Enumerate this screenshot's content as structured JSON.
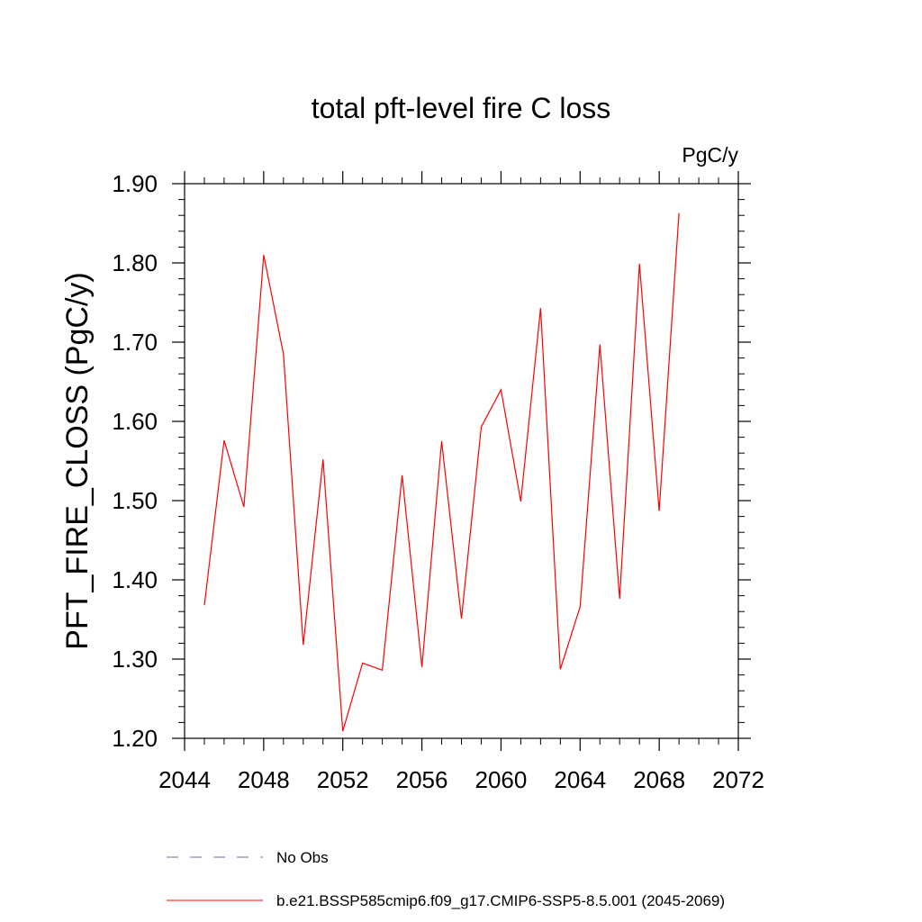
{
  "chart_data": {
    "type": "line",
    "title": "total pft-level fire C loss",
    "units_label": "PgC/y",
    "ylabel": "PFT_FIRE_CLOSS  (PgC/y)",
    "xlabel": "",
    "xlim": [
      2044,
      2072
    ],
    "ylim": [
      1.2,
      1.9
    ],
    "x_ticks": [
      2044,
      2048,
      2052,
      2056,
      2060,
      2064,
      2068,
      2072
    ],
    "y_ticks": [
      "1.20",
      "1.30",
      "1.40",
      "1.50",
      "1.60",
      "1.70",
      "1.80",
      "1.90"
    ],
    "grid": false,
    "legend_position": "bottom",
    "series": [
      {
        "name": "b.e21.BSSP585cmip6.f09_g17.CMIP6-SSP5-8.5.001 (2045-2069)",
        "color": "#ff0000",
        "dash": "solid",
        "x": [
          2045,
          2046,
          2047,
          2048,
          2049,
          2050,
          2051,
          2052,
          2053,
          2054,
          2055,
          2056,
          2057,
          2058,
          2059,
          2060,
          2061,
          2062,
          2063,
          2064,
          2065,
          2066,
          2067,
          2068,
          2069
        ],
        "y": [
          1.368,
          1.576,
          1.492,
          1.81,
          1.685,
          1.318,
          1.552,
          1.209,
          1.295,
          1.286,
          1.532,
          1.29,
          1.575,
          1.351,
          1.593,
          1.64,
          1.499,
          1.743,
          1.287,
          1.366,
          1.697,
          1.376,
          1.799,
          1.487,
          1.863
        ]
      }
    ],
    "legend": [
      {
        "label": "No Obs",
        "color": "#6a6aa8",
        "dash": "dashed"
      },
      {
        "label": "b.e21.BSSP585cmip6.f09_g17.CMIP6-SSP5-8.5.001 (2045-2069)",
        "color": "#ff0000",
        "dash": "solid"
      }
    ]
  }
}
